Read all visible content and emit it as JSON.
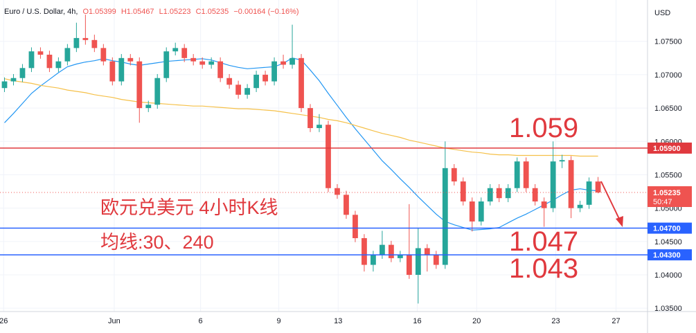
{
  "chart_data": {
    "type": "candlestick",
    "symbol": "Euro / U.S. Dollar, 4h,",
    "ohlc_text": [
      "O1.05399",
      "H1.05467",
      "L1.05223",
      "C1.05235",
      "−0.00164 (−0.16%)"
    ],
    "currency": "USD",
    "up_color": "#26a69a",
    "down_color": "#ef5350",
    "xlim": [
      0,
      72
    ],
    "xticks": [
      {
        "value": 0.4,
        "label": "26"
      },
      {
        "value": 12.7,
        "label": "Jun"
      },
      {
        "value": 22.3,
        "label": "6"
      },
      {
        "value": 31.0,
        "label": "9"
      },
      {
        "value": 37.6,
        "label": "13"
      },
      {
        "value": 46.4,
        "label": "16"
      },
      {
        "value": 53.0,
        "label": "20"
      },
      {
        "value": 61.8,
        "label": "23"
      },
      {
        "value": 68.5,
        "label": "27"
      }
    ],
    "ylim": [
      1.0345,
      1.0812
    ],
    "yticks": [
      {
        "value": 1.035,
        "label": "1.03500"
      },
      {
        "value": 1.04,
        "label": "1.04000"
      },
      {
        "value": 1.045,
        "label": "1.04500"
      },
      {
        "value": 1.05,
        "label": "1.05000"
      },
      {
        "value": 1.055,
        "label": "1.05500"
      },
      {
        "value": 1.06,
        "label": "1.06000"
      },
      {
        "value": 1.065,
        "label": "1.06500"
      },
      {
        "value": 1.07,
        "label": "1.07000"
      },
      {
        "value": 1.075,
        "label": "1.07500"
      }
    ],
    "grid": true,
    "open": [
      1.068,
      1.069,
      1.0695,
      1.071,
      1.0735,
      1.073,
      1.071,
      1.072,
      1.074,
      1.0755,
      1.0752,
      1.074,
      1.072,
      1.069,
      1.0725,
      1.072,
      1.065,
      1.0655,
      1.0695,
      1.0735,
      1.074,
      1.0725,
      1.072,
      1.0715,
      1.072,
      1.0695,
      1.0685,
      1.067,
      1.068,
      1.07,
      1.069,
      1.072,
      1.0715,
      1.0725,
      1.065,
      1.062,
      1.0625,
      1.053,
      1.052,
      1.049,
      1.0455,
      1.0415,
      1.043,
      1.0445,
      1.0425,
      1.043,
      1.04,
      1.044,
      1.043,
      1.0415,
      1.056,
      1.054,
      1.051,
      1.048,
      1.051,
      1.053,
      1.0515,
      1.053,
      1.057,
      1.053,
      1.051,
      1.05,
      1.057,
      1.0572,
      1.05,
      1.0505,
      1.05399
    ],
    "high": [
      1.0696,
      1.0701,
      1.0716,
      1.0741,
      1.0741,
      1.0736,
      1.0726,
      1.0746,
      1.0778,
      1.079,
      1.076,
      1.0746,
      1.0726,
      1.0731,
      1.0731,
      1.0726,
      1.0661,
      1.0701,
      1.0741,
      1.0748,
      1.0746,
      1.0731,
      1.0726,
      1.0726,
      1.0726,
      1.0701,
      1.0691,
      1.0686,
      1.0706,
      1.0706,
      1.0726,
      1.073,
      1.0775,
      1.0731,
      1.0656,
      1.0641,
      1.0631,
      1.0536,
      1.0526,
      1.0496,
      1.0461,
      1.0436,
      1.0466,
      1.0451,
      1.0436,
      1.0506,
      1.047,
      1.0446,
      1.0436,
      1.06,
      1.0566,
      1.0546,
      1.0516,
      1.0516,
      1.0536,
      1.0536,
      1.0536,
      1.0576,
      1.0576,
      1.0536,
      1.0516,
      1.06,
      1.058,
      1.0578,
      1.0511,
      1.0546,
      1.05467
    ],
    "low": [
      1.0674,
      1.0684,
      1.0689,
      1.0704,
      1.0724,
      1.0704,
      1.0704,
      1.0714,
      1.0734,
      1.0745,
      1.0734,
      1.0714,
      1.0684,
      1.0684,
      1.0714,
      1.0628,
      1.0644,
      1.0649,
      1.0689,
      1.0729,
      1.0719,
      1.0714,
      1.0709,
      1.0709,
      1.0689,
      1.0679,
      1.0664,
      1.0664,
      1.0674,
      1.0684,
      1.0684,
      1.0709,
      1.0709,
      1.0644,
      1.0614,
      1.0614,
      1.0524,
      1.0514,
      1.0484,
      1.0449,
      1.0405,
      1.0405,
      1.0424,
      1.0419,
      1.0419,
      1.0394,
      1.0357,
      1.0405,
      1.0409,
      1.0409,
      1.0534,
      1.0504,
      1.0465,
      1.0474,
      1.0504,
      1.0509,
      1.0509,
      1.0524,
      1.0524,
      1.0504,
      1.0472,
      1.0494,
      1.056,
      1.0485,
      1.0494,
      1.0499,
      1.05223
    ],
    "close": [
      1.069,
      1.0695,
      1.071,
      1.0735,
      1.073,
      1.071,
      1.072,
      1.074,
      1.0755,
      1.0752,
      1.074,
      1.072,
      1.069,
      1.0725,
      1.072,
      1.065,
      1.0655,
      1.0695,
      1.0735,
      1.074,
      1.0725,
      1.072,
      1.0715,
      1.072,
      1.0695,
      1.0685,
      1.067,
      1.068,
      1.07,
      1.069,
      1.072,
      1.0715,
      1.0725,
      1.065,
      1.062,
      1.0625,
      1.053,
      1.052,
      1.049,
      1.0455,
      1.0415,
      1.043,
      1.0445,
      1.0425,
      1.043,
      1.04,
      1.044,
      1.043,
      1.0415,
      1.056,
      1.054,
      1.051,
      1.048,
      1.051,
      1.053,
      1.0515,
      1.053,
      1.057,
      1.053,
      1.051,
      1.05,
      1.057,
      1.0572,
      1.05,
      1.0505,
      1.054,
      1.05235
    ],
    "series": [
      {
        "name": "MA30",
        "color": "#2196f3",
        "values": [
          1.0628,
          1.0642,
          1.0657,
          1.0672,
          1.0683,
          1.0693,
          1.0703,
          1.0712,
          1.0716,
          1.0719,
          1.0721,
          1.0724,
          1.0721,
          1.0719,
          1.0716,
          1.0714,
          1.0716,
          1.0718,
          1.072,
          1.0721,
          1.0722,
          1.0723,
          1.0724,
          1.0722,
          1.0718,
          1.0714,
          1.0711,
          1.0709,
          1.071,
          1.0711,
          1.0712,
          1.0717,
          1.0725,
          1.0722,
          1.0707,
          1.0691,
          1.0672,
          1.0654,
          1.0636,
          1.0619,
          1.0603,
          1.0587,
          1.0571,
          1.0558,
          1.0544,
          1.0531,
          1.0517,
          1.0504,
          1.0491,
          1.048,
          1.0475,
          1.0471,
          1.0467,
          1.0468,
          1.0469,
          1.0471,
          1.0478,
          1.0485,
          1.0491,
          1.0498,
          1.0505,
          1.0512,
          1.052,
          1.0527,
          1.0529,
          1.0527,
          1.0526
        ]
      },
      {
        "name": "MA240",
        "color": "#f5c048",
        "values": [
          1.0694,
          1.0691,
          1.0689,
          1.0687,
          1.0684,
          1.0682,
          1.068,
          1.0677,
          1.0675,
          1.0673,
          1.067,
          1.0668,
          1.0666,
          1.0663,
          1.0661,
          1.0659,
          1.0658,
          1.0657,
          1.0656,
          1.0655,
          1.0654,
          1.0653,
          1.0653,
          1.0652,
          1.0651,
          1.065,
          1.0649,
          1.0649,
          1.0648,
          1.0647,
          1.0646,
          1.0644,
          1.0642,
          1.064,
          1.0638,
          1.0636,
          1.0633,
          1.0631,
          1.0628,
          1.0624,
          1.062,
          1.0616,
          1.0612,
          1.0609,
          1.0606,
          1.0602,
          1.0599,
          1.0596,
          1.0593,
          1.059,
          1.0588,
          1.0586,
          1.0584,
          1.0583,
          1.0581,
          1.058,
          1.058,
          1.0579,
          1.0579,
          1.0579,
          1.0579,
          1.0579,
          1.0579,
          1.0579,
          1.0578,
          1.0578,
          1.0578
        ]
      }
    ],
    "hlines": [
      {
        "value": 1.059,
        "label": "1.05900",
        "color": "#e0393e"
      },
      {
        "value": 1.047,
        "label": "1.04700",
        "color": "#2962ff"
      },
      {
        "value": 1.043,
        "label": "1.04300",
        "color": "#2962ff"
      }
    ],
    "last_price": {
      "value": 1.05235,
      "label": "1.05235",
      "countdown": "50:47",
      "color": "#ef5350"
    },
    "annotations": [
      "1.059",
      "1.047",
      "1.043",
      "欧元兑美元 4小时K线",
      "均线:30、240"
    ]
  }
}
